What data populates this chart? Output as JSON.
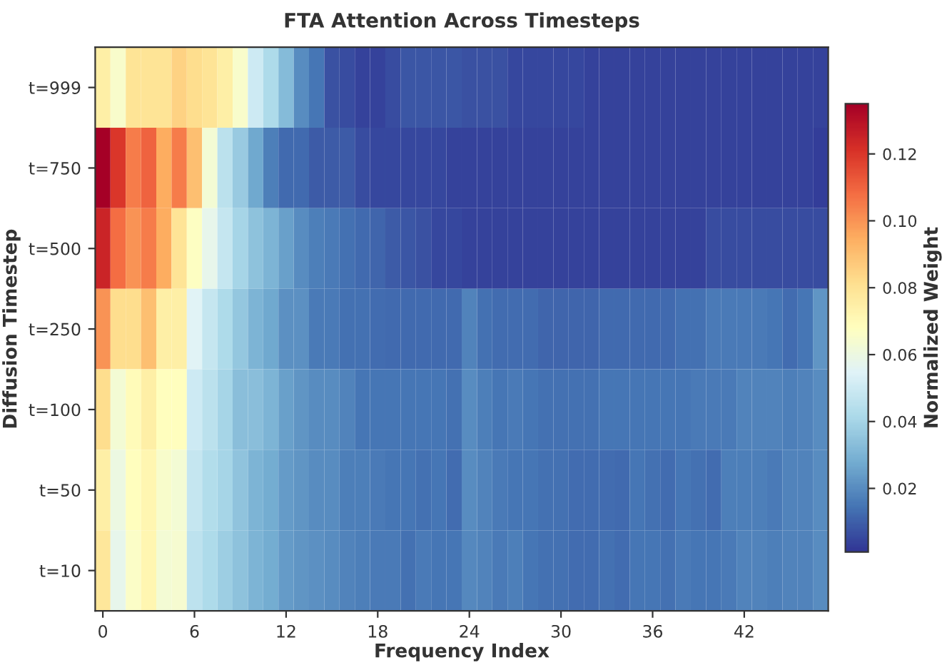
{
  "chart_data": {
    "type": "heatmap",
    "title": "FTA Attention Across Timesteps",
    "xlabel": "Frequency Index",
    "ylabel": "Diffusion Timestep",
    "clabel": "Normalized Weight",
    "categories": [
      "0",
      null,
      null,
      null,
      null,
      null,
      "6",
      null,
      null,
      null,
      null,
      null,
      "12",
      null,
      null,
      null,
      null,
      null,
      "18",
      null,
      null,
      null,
      null,
      null,
      "24",
      null,
      null,
      null,
      null,
      null,
      "30",
      null,
      null,
      null,
      null,
      null,
      "36",
      null,
      null,
      null,
      null,
      null,
      "42",
      null,
      null,
      null,
      null,
      null
    ],
    "y_categories": [
      "t=999",
      "t=750",
      "t=500",
      "t=250",
      "t=100",
      "t=50",
      "t=10"
    ],
    "cells": [
      [
        0.075,
        0.065,
        0.08,
        0.08,
        0.08,
        0.085,
        0.082,
        0.08,
        0.075,
        0.065,
        0.05,
        0.042,
        0.032,
        0.02,
        0.015,
        0.007,
        0.006,
        0.004,
        0.004,
        0.006,
        0.008,
        0.008,
        0.008,
        0.008,
        0.007,
        0.007,
        0.007,
        0.005,
        0.005,
        0.005,
        0.005,
        0.005,
        0.004,
        0.004,
        0.004,
        0.004,
        0.004,
        0.004,
        0.004,
        0.004,
        0.004,
        0.004,
        0.004,
        0.004,
        0.004,
        0.004,
        0.004,
        0.004
      ],
      [
        0.135,
        0.12,
        0.105,
        0.11,
        0.095,
        0.105,
        0.09,
        0.063,
        0.045,
        0.037,
        0.027,
        0.017,
        0.012,
        0.012,
        0.009,
        0.009,
        0.009,
        0.006,
        0.005,
        0.005,
        0.005,
        0.005,
        0.005,
        0.004,
        0.004,
        0.004,
        0.004,
        0.004,
        0.004,
        0.004,
        0.004,
        0.004,
        0.004,
        0.004,
        0.004,
        0.004,
        0.004,
        0.004,
        0.004,
        0.004,
        0.004,
        0.004,
        0.004,
        0.004,
        0.004,
        0.004,
        0.004,
        0.003
      ],
      [
        0.125,
        0.108,
        0.1,
        0.105,
        0.095,
        0.08,
        0.067,
        0.058,
        0.048,
        0.04,
        0.034,
        0.03,
        0.025,
        0.02,
        0.017,
        0.016,
        0.014,
        0.012,
        0.011,
        0.009,
        0.008,
        0.007,
        0.005,
        0.005,
        0.004,
        0.004,
        0.004,
        0.004,
        0.004,
        0.004,
        0.004,
        0.004,
        0.004,
        0.004,
        0.004,
        0.004,
        0.004,
        0.004,
        0.004,
        0.004,
        0.006,
        0.006,
        0.006,
        0.006,
        0.006,
        0.006,
        0.006,
        0.006
      ],
      [
        0.1,
        0.082,
        0.082,
        0.09,
        0.075,
        0.075,
        0.055,
        0.048,
        0.042,
        0.036,
        0.03,
        0.027,
        0.021,
        0.021,
        0.016,
        0.016,
        0.014,
        0.014,
        0.013,
        0.012,
        0.012,
        0.012,
        0.012,
        0.012,
        0.018,
        0.014,
        0.013,
        0.013,
        0.013,
        0.011,
        0.011,
        0.011,
        0.011,
        0.012,
        0.012,
        0.012,
        0.012,
        0.012,
        0.014,
        0.014,
        0.016,
        0.016,
        0.016,
        0.016,
        0.015,
        0.013,
        0.015,
        0.022
      ],
      [
        0.082,
        0.063,
        0.07,
        0.075,
        0.068,
        0.068,
        0.05,
        0.045,
        0.04,
        0.033,
        0.033,
        0.03,
        0.025,
        0.022,
        0.02,
        0.02,
        0.018,
        0.015,
        0.015,
        0.015,
        0.015,
        0.015,
        0.015,
        0.014,
        0.02,
        0.017,
        0.015,
        0.016,
        0.015,
        0.014,
        0.014,
        0.014,
        0.014,
        0.015,
        0.015,
        0.015,
        0.015,
        0.015,
        0.015,
        0.016,
        0.016,
        0.016,
        0.018,
        0.018,
        0.018,
        0.017,
        0.018,
        0.02
      ],
      [
        0.075,
        0.06,
        0.068,
        0.072,
        0.065,
        0.063,
        0.048,
        0.043,
        0.04,
        0.035,
        0.03,
        0.028,
        0.024,
        0.022,
        0.02,
        0.02,
        0.017,
        0.017,
        0.016,
        0.015,
        0.015,
        0.014,
        0.015,
        0.013,
        0.02,
        0.018,
        0.016,
        0.015,
        0.015,
        0.014,
        0.014,
        0.013,
        0.013,
        0.013,
        0.012,
        0.015,
        0.014,
        0.013,
        0.015,
        0.014,
        0.013,
        0.017,
        0.017,
        0.017,
        0.016,
        0.018,
        0.018,
        0.02
      ],
      [
        0.078,
        0.058,
        0.066,
        0.072,
        0.063,
        0.064,
        0.046,
        0.042,
        0.038,
        0.034,
        0.03,
        0.028,
        0.024,
        0.022,
        0.021,
        0.02,
        0.018,
        0.017,
        0.016,
        0.016,
        0.014,
        0.016,
        0.015,
        0.015,
        0.019,
        0.018,
        0.016,
        0.017,
        0.015,
        0.014,
        0.014,
        0.013,
        0.013,
        0.014,
        0.013,
        0.015,
        0.015,
        0.014,
        0.016,
        0.015,
        0.015,
        0.016,
        0.018,
        0.018,
        0.017,
        0.018,
        0.018,
        0.02
      ]
    ],
    "clim": [
      0.001,
      0.135
    ],
    "cticks": [
      0.02,
      0.04,
      0.06,
      0.08,
      {
        "value": 0.1,
        "label": "0.10"
      },
      0.12
    ]
  }
}
